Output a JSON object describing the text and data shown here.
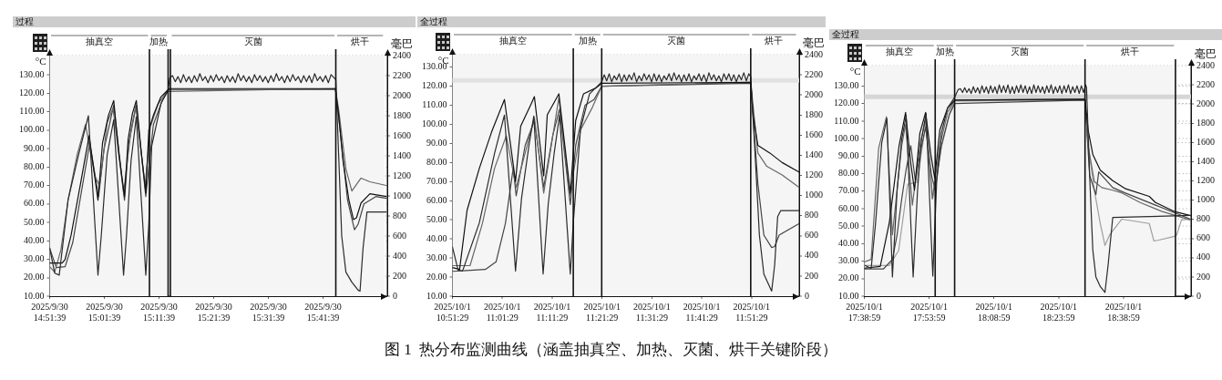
{
  "chart_data": [
    {
      "type": "line",
      "title": "过程",
      "ylabel": "°C",
      "y2label": "毫巴",
      "marker": "none",
      "grid": true,
      "xlim": [
        "2025-09-30T14:51:39",
        "2025-09-30T15:53:24"
      ],
      "xticks": [
        {
          "value": "2025-09-30T14:51:39",
          "label": "2025/9/30 14:51:39"
        },
        {
          "value": "2025-09-30T15:01:39",
          "label": "2025/9/30 15:01:39"
        },
        {
          "value": "2025-09-30T15:11:39",
          "label": "2025/9/30 15:11:39"
        },
        {
          "value": "2025-09-30T15:21:39",
          "label": "2025/9/30 15:21:39"
        },
        {
          "value": "2025-09-30T15:31:39",
          "label": "2025/9/30 15:31:39"
        },
        {
          "value": "2025-09-30T15:41:39",
          "label": "2025/9/30 15:41:39"
        }
      ],
      "ylim": [
        10,
        140.4
      ],
      "yticks": [
        {
          "value": 10,
          "label": "10.00"
        },
        {
          "value": 20,
          "label": "20.00"
        },
        {
          "value": 30,
          "label": "30.00"
        },
        {
          "value": 40,
          "label": "40.00"
        },
        {
          "value": 50,
          "label": "50.00"
        },
        {
          "value": 60,
          "label": "60.00"
        },
        {
          "value": 70,
          "label": "70.00"
        },
        {
          "value": 80,
          "label": "80.00"
        },
        {
          "value": 90,
          "label": "90.00"
        },
        {
          "value": 100,
          "label": "100.00"
        },
        {
          "value": 110,
          "label": "110.00"
        },
        {
          "value": 120,
          "label": "120.00"
        },
        {
          "value": 130,
          "label": "130.00"
        }
      ],
      "y2lim": [
        0,
        2400
      ],
      "y2ticks": [
        0,
        200,
        400,
        600,
        800,
        1000,
        1200,
        1400,
        1600,
        1800,
        2000,
        2200,
        2400
      ],
      "bands": [
        {
          "axis": "x",
          "from": "2025-09-30T14:51:39",
          "to": "2025-09-30T15:09:54",
          "label": "抽真空",
          "color": "#f5f5f5"
        },
        {
          "axis": "x",
          "from": "2025-09-30T15:09:54",
          "to": "2025-09-30T15:13:19",
          "label": "加热",
          "color": "#f5f5f5"
        },
        {
          "axis": "x",
          "from": "2025-09-30T15:13:44",
          "to": "2025-09-30T15:43:59",
          "label": "灭菌",
          "color": "#f5f5f5"
        },
        {
          "axis": "x",
          "from": "2025-09-30T15:43:59",
          "to": "2025-09-30T15:52:52",
          "label": "烘干",
          "color": "#f5f5f5"
        }
      ],
      "ref_lines": [
        {
          "axis": "x",
          "value": "2025-09-30T15:09:54"
        },
        {
          "axis": "x",
          "value": "2025-09-30T15:13:19"
        },
        {
          "axis": "x",
          "value": "2025-09-30T15:13:44"
        },
        {
          "axis": "x",
          "value": "2025-09-30T15:43:59"
        }
      ],
      "series": [
        {
          "color": "#2b2b2b",
          "axis": "y2",
          "x": [
            "2025-09-30T14:51:39",
            "2025-09-30T14:52:34",
            "2025-09-30T14:53:24",
            "2025-09-30T14:55:01",
            "2025-09-30T14:56:56",
            "2025-09-30T14:58:44",
            "2025-09-30T15:00:29",
            "2025-09-30T15:01:05",
            "2025-09-30T15:02:10",
            "2025-09-30T15:03:22",
            "2025-09-30T15:05:10",
            "2025-09-30T15:05:42",
            "2025-09-30T15:06:32",
            "2025-09-30T15:07:30",
            "2025-09-30T15:09:14",
            "2025-09-30T15:09:47",
            "2025-09-30T15:10:19",
            "2025-09-30T15:12:00",
            "2025-09-30T15:13:19",
            "2025-09-30T15:13:37",
            "2025-09-30T15:14:07",
            "2025-09-30T15:14:37",
            "2025-09-30T15:15:07",
            "2025-09-30T15:15:37",
            "2025-09-30T15:16:07",
            "2025-09-30T15:16:37",
            "2025-09-30T15:17:07",
            "2025-09-30T15:17:37",
            "2025-09-30T15:18:07",
            "2025-09-30T15:18:37",
            "2025-09-30T15:19:07",
            "2025-09-30T15:19:37",
            "2025-09-30T15:20:07",
            "2025-09-30T15:20:37",
            "2025-09-30T15:21:07",
            "2025-09-30T15:21:37",
            "2025-09-30T15:22:07",
            "2025-09-30T15:22:37",
            "2025-09-30T15:23:07",
            "2025-09-30T15:23:37",
            "2025-09-30T15:24:07",
            "2025-09-30T15:24:37",
            "2025-09-30T15:25:07",
            "2025-09-30T15:25:37",
            "2025-09-30T15:26:07",
            "2025-09-30T15:26:37",
            "2025-09-30T15:27:07",
            "2025-09-30T15:27:37",
            "2025-09-30T15:28:07",
            "2025-09-30T15:28:37",
            "2025-09-30T15:29:07",
            "2025-09-30T15:29:37",
            "2025-09-30T15:30:07",
            "2025-09-30T15:30:37",
            "2025-09-30T15:31:07",
            "2025-09-30T15:31:37",
            "2025-09-30T15:32:07",
            "2025-09-30T15:32:37",
            "2025-09-30T15:33:07",
            "2025-09-30T15:33:37",
            "2025-09-30T15:34:07",
            "2025-09-30T15:34:37",
            "2025-09-30T15:35:07",
            "2025-09-30T15:35:37",
            "2025-09-30T15:36:07",
            "2025-09-30T15:36:37",
            "2025-09-30T15:37:07",
            "2025-09-30T15:37:37",
            "2025-09-30T15:38:07",
            "2025-09-30T15:38:37",
            "2025-09-30T15:39:07",
            "2025-09-30T15:39:37",
            "2025-09-30T15:40:07",
            "2025-09-30T15:40:37",
            "2025-09-30T15:41:07",
            "2025-09-30T15:41:37",
            "2025-09-30T15:42:07",
            "2025-09-30T15:42:37",
            "2025-09-30T15:43:07",
            "2025-09-30T15:43:59",
            "2025-09-30T15:45:04",
            "2025-09-30T15:45:50",
            "2025-09-30T15:46:55",
            "2025-09-30T15:48:04",
            "2025-09-30T15:48:25",
            "2025-09-30T15:48:58",
            "2025-09-30T15:49:41",
            "2025-09-30T15:53:13"
          ],
          "values": [
            480,
            230,
            210,
            960,
            1410,
            1800,
            210,
            600,
            1410,
            1760,
            210,
            600,
            1350,
            1790,
            210,
            720,
            1500,
            1920,
            2060,
            2180,
            2200,
            2140,
            2190,
            2130,
            2210,
            2140,
            2190,
            2130,
            2200,
            2140,
            2220,
            2150,
            2190,
            2130,
            2200,
            2140,
            2210,
            2150,
            2190,
            2130,
            2200,
            2140,
            2190,
            2130,
            2220,
            2150,
            2200,
            2140,
            2190,
            2130,
            2210,
            2150,
            2200,
            2140,
            2190,
            2130,
            2200,
            2140,
            2220,
            2150,
            2190,
            2130,
            2200,
            2140,
            2210,
            2150,
            2190,
            2130,
            2200,
            2140,
            2200,
            2130,
            2220,
            2150,
            2190,
            2140,
            2200,
            2130,
            2210,
            2160,
            600,
            240,
            140,
            60,
            50,
            480,
            840,
            840
          ]
        },
        {
          "color": "#111111",
          "x": [
            "2025-09-30T14:51:39",
            "2025-09-30T14:53:56",
            "2025-09-30T14:54:29",
            "2025-09-30T14:55:34",
            "2025-09-30T14:57:14",
            "2025-09-30T14:58:52",
            "2025-09-30T14:59:42",
            "2025-09-30T15:00:29",
            "2025-09-30T15:01:19",
            "2025-09-30T15:02:24",
            "2025-09-30T15:03:22",
            "2025-09-30T15:04:19",
            "2025-09-30T15:05:20",
            "2025-09-30T15:06:00",
            "2025-09-30T15:06:47",
            "2025-09-30T15:07:30",
            "2025-09-30T15:08:24",
            "2025-09-30T15:09:14",
            "2025-09-30T15:09:47",
            "2025-09-30T15:10:37",
            "2025-09-30T15:12:00",
            "2025-09-30T15:13:30",
            "2025-09-30T15:43:55",
            "2025-09-30T15:44:31",
            "2025-09-30T15:45:18",
            "2025-09-30T15:46:23",
            "2025-09-30T15:47:13",
            "2025-09-30T15:47:46",
            "2025-09-30T15:48:36",
            "2025-09-30T15:50:13",
            "2025-09-30T15:53:13"
          ],
          "values": [
            28,
            28,
            30,
            43,
            70,
            97,
            79,
            62,
            93,
            108,
            116,
            87,
            64,
            95,
            109,
            116,
            88,
            66,
            100,
            108,
            118,
            122.5,
            122.5,
            108,
            83.5,
            62,
            51.5,
            52.5,
            60.5,
            65.5,
            64
          ]
        },
        {
          "color": "#666666",
          "x": [
            "2025-09-30T14:51:39",
            "2025-09-30T14:52:34",
            "2025-09-30T14:53:42",
            "2025-09-30T14:55:01",
            "2025-09-30T14:56:42",
            "2025-09-30T14:58:12",
            "2025-09-30T14:59:56",
            "2025-09-30T15:00:47",
            "2025-09-30T15:02:10",
            "2025-09-30T15:03:14",
            "2025-09-30T15:05:10",
            "2025-09-30T15:06:32",
            "2025-09-30T15:07:23",
            "2025-09-30T15:09:07",
            "2025-09-30T15:10:05",
            "2025-09-30T15:11:28",
            "2025-09-30T15:13:05",
            "2025-09-30T15:43:55",
            "2025-09-30T15:44:31",
            "2025-09-30T15:45:50",
            "2025-09-30T15:46:55",
            "2025-09-30T15:48:36",
            "2025-09-30T15:50:13",
            "2025-09-30T15:53:13"
          ],
          "values": [
            26,
            23,
            35,
            62,
            87,
            103,
            75,
            70,
            104,
            112,
            66,
            100,
            113,
            70,
            102,
            114,
            121,
            122.5,
            111,
            79,
            67,
            74,
            72,
            70
          ]
        },
        {
          "color": "#444444",
          "x": [
            "2025-09-30T14:51:39",
            "2025-09-30T14:52:52",
            "2025-09-30T14:54:29",
            "2025-09-30T14:55:52",
            "2025-09-30T14:57:29",
            "2025-09-30T14:58:59",
            "2025-09-30T15:00:36",
            "2025-09-30T15:01:37",
            "2025-09-30T15:03:22",
            "2025-09-30T15:05:20",
            "2025-09-30T15:06:04",
            "2025-09-30T15:07:30",
            "2025-09-30T15:09:14",
            "2025-09-30T15:10:37",
            "2025-09-30T15:12:14",
            "2025-09-30T15:13:30",
            "2025-09-30T15:43:55",
            "2025-09-30T15:44:46",
            "2025-09-30T15:46:08",
            "2025-09-30T15:47:24",
            "2025-09-30T15:48:04",
            "2025-09-30T15:49:08",
            "2025-09-30T15:51:18",
            "2025-09-30T15:53:13"
          ],
          "values": [
            36,
            25.5,
            26,
            39,
            67,
            93,
            64,
            90,
            113.5,
            62,
            92,
            113.5,
            64,
            103,
            116,
            122,
            122,
            100,
            62,
            46,
            49,
            60,
            64,
            63
          ]
        }
      ],
      "annotations": [
        "图 1  热分布监测曲线（涵盖抽真空、加热、灭菌、烘干关键阶段）"
      ]
    },
    {
      "type": "line",
      "title": "全过程",
      "ylabel": "°C",
      "y2label": "毫巴",
      "marker": "none",
      "grid": true,
      "xlim": [
        "2025-10-01T10:51:29",
        "2025-10-01T12:01:01"
      ],
      "xticks": [
        {
          "value": "2025-10-01T10:51:29",
          "label": "2025/10/1 10:51:29"
        },
        {
          "value": "2025-10-01T11:01:29",
          "label": "2025/10/1 11:01:29"
        },
        {
          "value": "2025-10-01T11:11:29",
          "label": "2025/10/1 11:11:29"
        },
        {
          "value": "2025-10-01T11:21:29",
          "label": "2025/10/1 11:21:29"
        },
        {
          "value": "2025-10-01T11:31:29",
          "label": "2025/10/1 11:31:29"
        },
        {
          "value": "2025-10-01T11:41:29",
          "label": "2025/10/1 11:41:29"
        },
        {
          "value": "2025-10-01T11:51:29",
          "label": "2025/10/1 11:51:29"
        }
      ],
      "ylim": [
        10,
        136.5
      ],
      "yticks": [
        {
          "value": 10,
          "label": "10.00"
        },
        {
          "value": 20,
          "label": "20.00"
        },
        {
          "value": 30,
          "label": "30.00"
        },
        {
          "value": 40,
          "label": "40.00"
        },
        {
          "value": 50,
          "label": "50.00"
        },
        {
          "value": 60,
          "label": "60.00"
        },
        {
          "value": 70,
          "label": "70.00"
        },
        {
          "value": 80,
          "label": "80.00"
        },
        {
          "value": 90,
          "label": "90.00"
        },
        {
          "value": 100,
          "label": "100.00"
        },
        {
          "value": 110,
          "label": "110.00"
        },
        {
          "value": 120,
          "label": "120.00"
        },
        {
          "value": 130,
          "label": "130.00"
        }
      ],
      "y2lim": [
        0,
        2400
      ],
      "y2ticks": [
        0,
        200,
        400,
        600,
        800,
        1000,
        1200,
        1400,
        1600,
        1800,
        2000,
        2200,
        2400
      ],
      "bands": [
        {
          "axis": "x",
          "from": "2025-10-01T10:51:29",
          "to": "2025-10-01T11:15:43",
          "label": "抽真空",
          "color": "#f5f5f5"
        },
        {
          "axis": "x",
          "from": "2025-10-01T11:15:43",
          "to": "2025-10-01T11:21:25",
          "label": "加热",
          "color": "#f5f5f5"
        },
        {
          "axis": "x",
          "from": "2025-10-01T11:21:25",
          "to": "2025-10-01T11:51:18",
          "label": "灭菌",
          "color": "#f5f5f5"
        },
        {
          "axis": "x",
          "from": "2025-10-01T11:51:18",
          "to": "2025-10-01T12:00:40",
          "label": "烘干",
          "color": "#f5f5f5"
        },
        {
          "axis": "y",
          "from": 121.8,
          "to": 124.2,
          "color": "#e2e2e2"
        }
      ],
      "ref_lines": [
        {
          "axis": "x",
          "value": "2025-10-01T11:15:43"
        },
        {
          "axis": "x",
          "value": "2025-10-01T11:21:25"
        },
        {
          "axis": "x",
          "value": "2025-10-01T11:51:18"
        }
      ],
      "series": [
        {
          "color": "#2b2b2b",
          "axis": "y2",
          "x": [
            "2025-10-01T10:51:29",
            "2025-10-01T10:52:37",
            "2025-10-01T10:53:31",
            "2025-10-01T10:56:53",
            "2025-10-01T10:59:56",
            "2025-10-01T11:01:55",
            "2025-10-01T11:04:08",
            "2025-10-01T11:05:20",
            "2025-10-01T11:06:50",
            "2025-10-01T11:07:48",
            "2025-10-01T11:09:40",
            "2025-10-01T11:10:41",
            "2025-10-01T11:11:53",
            "2025-10-01T11:12:58",
            "2025-10-01T11:15:07",
            "2025-10-01T11:15:43",
            "2025-10-01T11:17:10",
            "2025-10-01T11:18:58",
            "2025-10-01T11:21:25",
            "2025-10-01T11:21:55",
            "2025-10-01T11:22:25",
            "2025-10-01T11:22:55",
            "2025-10-01T11:23:25",
            "2025-10-01T11:23:55",
            "2025-10-01T11:24:25",
            "2025-10-01T11:24:55",
            "2025-10-01T11:25:25",
            "2025-10-01T11:25:55",
            "2025-10-01T11:26:25",
            "2025-10-01T11:26:55",
            "2025-10-01T11:27:25",
            "2025-10-01T11:27:55",
            "2025-10-01T11:28:25",
            "2025-10-01T11:28:55",
            "2025-10-01T11:29:25",
            "2025-10-01T11:29:55",
            "2025-10-01T11:30:25",
            "2025-10-01T11:30:55",
            "2025-10-01T11:31:25",
            "2025-10-01T11:31:55",
            "2025-10-01T11:32:25",
            "2025-10-01T11:32:55",
            "2025-10-01T11:33:25",
            "2025-10-01T11:33:55",
            "2025-10-01T11:34:25",
            "2025-10-01T11:34:55",
            "2025-10-01T11:35:25",
            "2025-10-01T11:35:55",
            "2025-10-01T11:36:25",
            "2025-10-01T11:36:55",
            "2025-10-01T11:37:25",
            "2025-10-01T11:37:55",
            "2025-10-01T11:38:25",
            "2025-10-01T11:38:55",
            "2025-10-01T11:39:25",
            "2025-10-01T11:39:55",
            "2025-10-01T11:40:25",
            "2025-10-01T11:40:55",
            "2025-10-01T11:41:25",
            "2025-10-01T11:41:55",
            "2025-10-01T11:42:25",
            "2025-10-01T11:42:55",
            "2025-10-01T11:43:25",
            "2025-10-01T11:43:55",
            "2025-10-01T11:44:25",
            "2025-10-01T11:44:55",
            "2025-10-01T11:45:25",
            "2025-10-01T11:45:55",
            "2025-10-01T11:46:25",
            "2025-10-01T11:46:55",
            "2025-10-01T11:47:25",
            "2025-10-01T11:47:55",
            "2025-10-01T11:48:25",
            "2025-10-01T11:48:55",
            "2025-10-01T11:49:25",
            "2025-10-01T11:49:55",
            "2025-10-01T11:50:25",
            "2025-10-01T11:50:55",
            "2025-10-01T11:51:18",
            "2025-10-01T11:52:05",
            "2025-10-01T11:53:02",
            "2025-10-01T11:53:56",
            "2025-10-01T11:55:30",
            "2025-10-01T11:56:06",
            "2025-10-01T11:56:42",
            "2025-10-01T11:57:18",
            "2025-10-01T12:00:58"
          ],
          "values": [
            490,
            260,
            250,
            730,
            1420,
            1800,
            250,
            970,
            1500,
            1790,
            220,
            910,
            1420,
            1800,
            220,
            730,
            1660,
            2010,
            2130,
            2200,
            2140,
            2210,
            2130,
            2190,
            2150,
            2210,
            2130,
            2200,
            2140,
            2200,
            2150,
            2220,
            2130,
            2190,
            2140,
            2210,
            2150,
            2200,
            2130,
            2210,
            2140,
            2200,
            2130,
            2190,
            2150,
            2210,
            2140,
            2220,
            2150,
            2200,
            2130,
            2200,
            2140,
            2210,
            2130,
            2190,
            2150,
            2210,
            2140,
            2200,
            2130,
            2220,
            2150,
            2200,
            2140,
            2190,
            2130,
            2210,
            2150,
            2210,
            2140,
            2200,
            2130,
            2200,
            2150,
            2220,
            2140,
            2210,
            2180,
            1500,
            610,
            220,
            50,
            310,
            790,
            850,
            850
          ]
        },
        {
          "color": "#111111",
          "x": [
            "2025-10-01T10:51:29",
            "2025-10-01T10:52:55",
            "2025-10-01T10:54:25",
            "2025-10-01T10:56:53",
            "2025-10-01T10:59:20",
            "2025-10-01T11:01:55",
            "2025-10-01T11:04:08",
            "2025-10-01T11:05:10",
            "2025-10-01T11:07:19",
            "2025-10-01T11:07:55",
            "2025-10-01T11:09:47",
            "2025-10-01T11:10:30",
            "2025-10-01T11:12:50",
            "2025-10-01T11:15:07",
            "2025-10-01T11:16:12",
            "2025-10-01T11:17:46",
            "2025-10-01T11:20:13",
            "2025-10-01T11:21:25",
            "2025-10-01T11:51:18",
            "2025-10-01T11:51:47",
            "2025-10-01T11:52:44",
            "2025-10-01T11:55:08",
            "2025-10-01T11:57:36",
            "2025-10-01T12:00:58"
          ],
          "values": [
            25,
            24,
            55,
            77,
            96,
            113,
            70,
            99,
            111,
            114.5,
            73,
            105,
            116,
            64,
            102,
            116,
            119,
            121.5,
            122,
            105,
            89,
            85,
            80,
            75
          ]
        },
        {
          "color": "#666666",
          "x": [
            "2025-10-01T10:51:29",
            "2025-10-01T10:55:01",
            "2025-10-01T10:57:29",
            "2025-10-01T10:59:56",
            "2025-10-01T11:02:17",
            "2025-10-01T11:04:16",
            "2025-10-01T11:07:55",
            "2025-10-01T11:09:47",
            "2025-10-01T11:12:50",
            "2025-10-01T11:15:00",
            "2025-10-01T11:17:10",
            "2025-10-01T11:19:34",
            "2025-10-01T11:21:25",
            "2025-10-01T11:51:18",
            "2025-10-01T11:52:44",
            "2025-10-01T11:54:32",
            "2025-10-01T11:57:36",
            "2025-10-01T12:00:58"
          ],
          "values": [
            26,
            26,
            48,
            77,
            94,
            67,
            103.5,
            64,
            114,
            62.5,
            97,
            109,
            120,
            122,
            85,
            78,
            73.5,
            67
          ]
        },
        {
          "color": "#444444",
          "x": [
            "2025-10-01T10:51:29",
            "2025-10-01T10:58:05",
            "2025-10-01T11:00:14",
            "2025-10-01T11:02:06",
            "2025-10-01T11:03:40",
            "2025-10-01T11:04:16",
            "2025-10-01T11:06:04",
            "2025-10-01T11:07:55",
            "2025-10-01T11:09:47",
            "2025-10-01T11:11:35",
            "2025-10-01T11:12:58",
            "2025-10-01T11:15:07",
            "2025-10-01T11:16:12",
            "2025-10-01T11:18:04",
            "2025-10-01T11:19:52",
            "2025-10-01T11:21:25",
            "2025-10-01T11:51:18",
            "2025-10-01T11:52:44",
            "2025-10-01T11:53:56",
            "2025-10-01T11:55:30",
            "2025-10-01T11:56:06",
            "2025-10-01T11:57:00",
            "2025-10-01T12:00:58"
          ],
          "values": [
            23,
            24,
            28,
            48,
            77,
            62.5,
            89,
            102,
            67,
            94,
            108,
            58,
            89,
            110,
            113,
            120,
            121.5,
            69,
            42,
            35.5,
            36,
            42,
            48
          ]
        }
      ]
    },
    {
      "type": "line",
      "title": "全过程",
      "ylabel": "°C",
      "y2label": "毫巴",
      "marker": "none",
      "grid": true,
      "xlim": [
        "2025-10-01T17:38:59",
        "2025-10-01T18:54:36"
      ],
      "xticks": [
        {
          "value": "2025-10-01T17:38:59",
          "label": "2025/10/1 17:38:59"
        },
        {
          "value": "2025-10-01T17:53:59",
          "label": "2025/10/1 17:53:59"
        },
        {
          "value": "2025-10-01T18:08:59",
          "label": "2025/10/1 18:08:59"
        },
        {
          "value": "2025-10-01T18:23:59",
          "label": "2025/10/1 18:23:59"
        },
        {
          "value": "2025-10-01T18:38:59",
          "label": "2025/10/1 18:38:59"
        }
      ],
      "ylim": [
        10,
        141.7
      ],
      "yticks": [
        {
          "value": 10,
          "label": "10.00"
        },
        {
          "value": 20,
          "label": "20.00"
        },
        {
          "value": 30,
          "label": "30.00"
        },
        {
          "value": 40,
          "label": "40.00"
        },
        {
          "value": 50,
          "label": "50.00"
        },
        {
          "value": 60,
          "label": "60.00"
        },
        {
          "value": 70,
          "label": "70.00"
        },
        {
          "value": 80,
          "label": "80.00"
        },
        {
          "value": 90,
          "label": "90.00"
        },
        {
          "value": 100,
          "label": "100.00"
        },
        {
          "value": 110,
          "label": "110.00"
        },
        {
          "value": 120,
          "label": "120.00"
        },
        {
          "value": 130,
          "label": "130.00"
        }
      ],
      "y2lim": [
        0,
        2400
      ],
      "y2ticks": [
        0,
        200,
        400,
        600,
        800,
        1000,
        1200,
        1400,
        1600,
        1800,
        2000,
        2200,
        2400
      ],
      "bands": [
        {
          "axis": "x",
          "from": "2025-10-01T17:38:59",
          "to": "2025-10-01T17:55:23",
          "label": "抽真空",
          "color": "#f5f5f5"
        },
        {
          "axis": "x",
          "from": "2025-10-01T17:55:23",
          "to": "2025-10-01T17:59:53",
          "label": "加热",
          "color": "#f5f5f5"
        },
        {
          "axis": "x",
          "from": "2025-10-01T17:59:53",
          "to": "2025-10-01T18:30:04",
          "label": "灭菌",
          "color": "#f5f5f5"
        },
        {
          "axis": "x",
          "from": "2025-10-01T18:30:04",
          "to": "2025-10-01T18:51:00",
          "label": "烘干",
          "color": "#f5f5f5"
        },
        {
          "axis": "y",
          "from": 122.6,
          "to": 125.2,
          "color": "#d6d6d6"
        }
      ],
      "ref_lines": [
        {
          "axis": "x",
          "value": "2025-10-01T17:55:23"
        },
        {
          "axis": "x",
          "value": "2025-10-01T17:59:53"
        },
        {
          "axis": "x",
          "value": "2025-10-01T18:30:04"
        },
        {
          "axis": "x",
          "value": "2025-10-01T18:51:00"
        }
      ],
      "series": [
        {
          "color": "#2b2b2b",
          "axis": "y2",
          "x": [
            "2025-10-01T17:39:07",
            "2025-10-01T17:40:34",
            "2025-10-01T17:41:35",
            "2025-10-01T17:43:01",
            "2025-10-01T17:44:13",
            "2025-10-01T17:45:29",
            "2025-10-01T17:46:34",
            "2025-10-01T17:47:38",
            "2025-10-01T17:48:40",
            "2025-10-01T17:50:17",
            "2025-10-01T17:51:18",
            "2025-10-01T17:52:12",
            "2025-10-01T17:53:17",
            "2025-10-01T17:54:50",
            "2025-10-01T17:55:44",
            "2025-10-01T17:56:49",
            "2025-10-01T17:58:16",
            "2025-10-01T17:59:53",
            "2025-10-01T18:00:43",
            "2025-10-01T18:01:13",
            "2025-10-01T18:01:43",
            "2025-10-01T18:02:13",
            "2025-10-01T18:02:43",
            "2025-10-01T18:03:13",
            "2025-10-01T18:03:43",
            "2025-10-01T18:04:13",
            "2025-10-01T18:04:43",
            "2025-10-01T18:05:13",
            "2025-10-01T18:05:43",
            "2025-10-01T18:06:13",
            "2025-10-01T18:06:43",
            "2025-10-01T18:07:13",
            "2025-10-01T18:07:43",
            "2025-10-01T18:08:13",
            "2025-10-01T18:08:43",
            "2025-10-01T18:09:13",
            "2025-10-01T18:09:43",
            "2025-10-01T18:10:13",
            "2025-10-01T18:10:43",
            "2025-10-01T18:11:13",
            "2025-10-01T18:11:43",
            "2025-10-01T18:12:13",
            "2025-10-01T18:12:43",
            "2025-10-01T18:13:13",
            "2025-10-01T18:13:43",
            "2025-10-01T18:14:13",
            "2025-10-01T18:14:43",
            "2025-10-01T18:15:13",
            "2025-10-01T18:15:43",
            "2025-10-01T18:16:13",
            "2025-10-01T18:16:43",
            "2025-10-01T18:17:13",
            "2025-10-01T18:17:43",
            "2025-10-01T18:18:13",
            "2025-10-01T18:18:43",
            "2025-10-01T18:19:13",
            "2025-10-01T18:19:43",
            "2025-10-01T18:20:13",
            "2025-10-01T18:20:43",
            "2025-10-01T18:21:13",
            "2025-10-01T18:21:43",
            "2025-10-01T18:22:13",
            "2025-10-01T18:22:43",
            "2025-10-01T18:23:13",
            "2025-10-01T18:23:43",
            "2025-10-01T18:24:13",
            "2025-10-01T18:24:43",
            "2025-10-01T18:25:13",
            "2025-10-01T18:25:43",
            "2025-10-01T18:26:13",
            "2025-10-01T18:26:43",
            "2025-10-01T18:27:13",
            "2025-10-01T18:27:43",
            "2025-10-01T18:28:13",
            "2025-10-01T18:28:43",
            "2025-10-01T18:29:13",
            "2025-10-01T18:29:43",
            "2025-10-01T18:30:13",
            "2025-10-01T18:30:25",
            "2025-10-01T18:31:08",
            "2025-10-01T18:31:52",
            "2025-10-01T18:32:35",
            "2025-10-01T18:33:36",
            "2025-10-01T18:34:41",
            "2025-10-01T18:35:24",
            "2025-10-01T18:36:29",
            "2025-10-01T18:54:29"
          ],
          "values": [
            320,
            290,
            760,
            1600,
            1850,
            200,
            1100,
            1630,
            1880,
            200,
            1100,
            1630,
            1900,
            210,
            1200,
            1700,
            1960,
            2070,
            2150,
            2160,
            2120,
            2170,
            2120,
            2160,
            2110,
            2180,
            2120,
            2170,
            2110,
            2190,
            2120,
            2180,
            2110,
            2190,
            2120,
            2180,
            2110,
            2200,
            2120,
            2190,
            2120,
            2200,
            2110,
            2180,
            2110,
            2190,
            2120,
            2200,
            2120,
            2190,
            2110,
            2180,
            2110,
            2200,
            2120,
            2190,
            2120,
            2180,
            2110,
            2190,
            2120,
            2200,
            2110,
            2180,
            2120,
            2190,
            2110,
            2190,
            2120,
            2200,
            2110,
            2180,
            2120,
            2190,
            2110,
            2190,
            2120,
            2200,
            2170,
            1260,
            480,
            200,
            100,
            40,
            320,
            820,
            840
          ]
        },
        {
          "color": "#111111",
          "x": [
            "2025-10-01T17:38:59",
            "2025-10-01T17:42:40",
            "2025-10-01T17:44:46",
            "2025-10-01T17:47:02",
            "2025-10-01T17:48:32",
            "2025-10-01T17:49:44",
            "2025-10-01T17:50:35",
            "2025-10-01T17:51:50",
            "2025-10-01T17:53:10",
            "2025-10-01T17:54:22",
            "2025-10-01T17:55:16",
            "2025-10-01T17:56:28",
            "2025-10-01T17:58:16",
            "2025-10-01T17:59:53",
            "2025-10-01T18:30:04",
            "2025-10-01T18:30:47",
            "2025-10-01T18:31:52",
            "2025-10-01T18:33:36",
            "2025-10-01T18:36:29",
            "2025-10-01T18:39:18",
            "2025-10-01T18:44:56",
            "2025-10-01T18:46:23",
            "2025-10-01T18:50:35",
            "2025-10-01T18:54:29"
          ],
          "values": [
            26,
            27,
            52,
            96,
            115,
            86,
            70.5,
            103,
            115,
            91,
            77.5,
            105,
            117.5,
            122,
            122.5,
            105,
            91,
            82,
            76,
            71.5,
            67,
            63.5,
            58.5,
            56
          ]
        },
        {
          "color": "#666666",
          "x": [
            "2025-10-01T17:38:59",
            "2025-10-01T17:40:34",
            "2025-10-01T17:42:18",
            "2025-10-01T17:44:06",
            "2025-10-01T17:45:29",
            "2025-10-01T17:47:38",
            "2025-10-01T17:48:32",
            "2025-10-01T17:50:06",
            "2025-10-01T17:51:50",
            "2025-10-01T17:53:10",
            "2025-10-01T17:54:43",
            "2025-10-01T17:56:28",
            "2025-10-01T17:58:16",
            "2025-10-01T17:59:53",
            "2025-10-01T18:30:04",
            "2025-10-01T18:30:47",
            "2025-10-01T18:32:13",
            "2025-10-01T18:33:58",
            "2025-10-01T18:36:29",
            "2025-10-01T18:38:35",
            "2025-10-01T18:42:50",
            "2025-10-01T18:47:46",
            "2025-10-01T18:54:29"
          ],
          "values": [
            29.5,
            31,
            94.5,
            112.5,
            45,
            96,
            108,
            62,
            96,
            111,
            65.5,
            96,
            115,
            122,
            122.5,
            96,
            75.5,
            72,
            70.5,
            69,
            63.5,
            58.5,
            53.5
          ]
        },
        {
          "color": "#444444",
          "x": [
            "2025-10-01T17:38:59",
            "2025-10-01T17:43:23",
            "2025-10-01T17:45:29",
            "2025-10-01T17:46:34",
            "2025-10-01T17:47:38",
            "2025-10-01T17:48:40",
            "2025-10-01T17:49:44",
            "2025-10-01T17:50:49",
            "2025-10-01T17:51:50",
            "2025-10-01T17:53:10",
            "2025-10-01T17:54:32",
            "2025-10-01T17:55:23",
            "2025-10-01T17:56:49",
            "2025-10-01T17:58:37",
            "2025-10-01T17:59:53",
            "2025-10-01T18:30:04",
            "2025-10-01T18:31:08",
            "2025-10-01T18:32:35",
            "2025-10-01T18:33:14",
            "2025-10-01T18:36:29",
            "2025-10-01T18:39:18",
            "2025-10-01T18:46:23",
            "2025-10-01T18:54:29"
          ],
          "values": [
            25.5,
            25.5,
            31,
            45,
            65.5,
            82.5,
            96,
            75.5,
            91,
            106.5,
            79,
            70.5,
            96,
            113.5,
            120,
            122,
            79,
            68,
            81,
            72,
            69,
            62,
            54
          ]
        },
        {
          "color": "#9e9e9e",
          "x": [
            "2025-10-01T17:38:59",
            "2025-10-01T17:44:46",
            "2025-10-01T17:46:55",
            "2025-10-01T17:49:01",
            "2025-10-01T17:51:11",
            "2025-10-01T17:53:17",
            "2025-10-01T17:54:50",
            "2025-10-01T17:56:49",
            "2025-10-01T17:58:55",
            "2025-10-01T17:59:53",
            "2025-10-01T18:30:04",
            "2025-10-01T18:30:47",
            "2025-10-01T18:32:13",
            "2025-10-01T18:33:36",
            "2025-10-01T18:34:41",
            "2025-10-01T18:35:46",
            "2025-10-01T18:38:35",
            "2025-10-01T18:44:56",
            "2025-10-01T18:46:01",
            "2025-10-01T18:47:06",
            "2025-10-01T18:50:35",
            "2025-10-01T18:51:18",
            "2025-10-01T18:52:23",
            "2025-10-01T18:54:29"
          ],
          "values": [
            27.5,
            27.5,
            36,
            74,
            75,
            110,
            66,
            95,
            116,
            121.5,
            122,
            96,
            70.5,
            51.5,
            39,
            45,
            54,
            51.5,
            41.5,
            42,
            44,
            45,
            53.5,
            54
          ]
        }
      ]
    }
  ]
}
